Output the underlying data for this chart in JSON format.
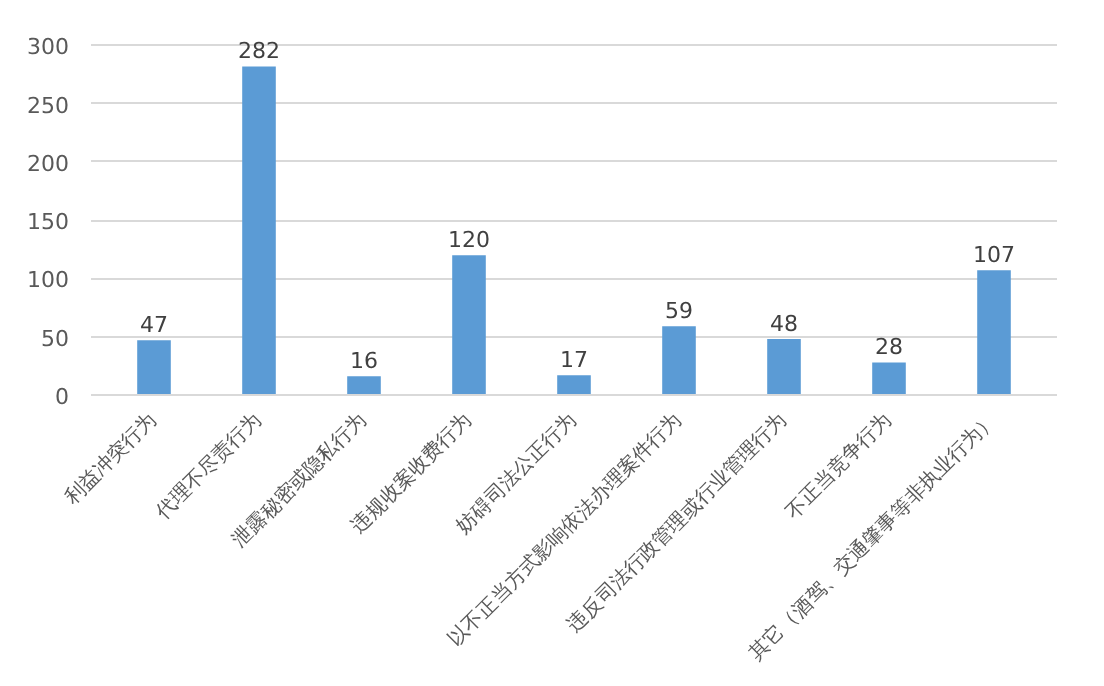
{
  "chart_data": {
    "type": "bar",
    "categories": [
      "利益冲突行为",
      "代理不尽责行为",
      "泄露秘密或隐私行为",
      "违规收案收费行为",
      "妨碍司法公正行为",
      "以不正当方式影响依法办理案件行为",
      "违反司法行政管理或行业管理行为",
      "不正当竞争行为",
      "其它（酒驾、交通肇事等非执业行为）"
    ],
    "values": [
      47,
      282,
      16,
      120,
      17,
      59,
      48,
      28,
      107
    ],
    "color": "#5b9bd5",
    "ylim": [
      0,
      300
    ],
    "yticks": [
      0,
      50,
      100,
      150,
      200,
      250,
      300
    ],
    "grid": "y",
    "data_labels": true
  }
}
